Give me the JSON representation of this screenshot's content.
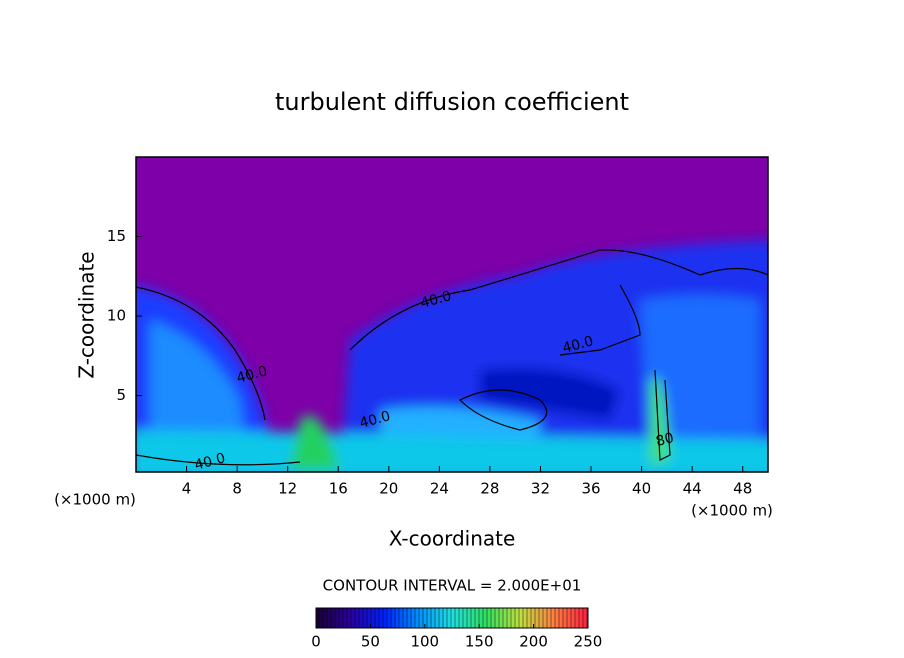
{
  "chart_data": {
    "type": "contour",
    "title": "turbulent diffusion coefficient",
    "x_label": "X-coordinate",
    "y_label": "Z-coordinate",
    "x_unit_labels": [
      "(×1000 m)",
      "(×1000 m)"
    ],
    "xlim": [
      0,
      50
    ],
    "xticks": [
      4,
      8,
      12,
      16,
      20,
      24,
      28,
      32,
      36,
      40,
      44,
      48
    ],
    "ylim": [
      0.2,
      20
    ],
    "yticks": [
      5,
      10,
      15
    ],
    "contour_labels": [
      "40.0",
      "40.0",
      "40.0",
      "40.0",
      "40.0",
      "80"
    ],
    "contour_interval": "CONTOUR INTERVAL = 2.000E+01",
    "colorbar": {
      "lim": [
        0,
        250
      ],
      "ticks": [
        0,
        50,
        100,
        150,
        200,
        250
      ],
      "colors": [
        "#1a0033",
        "#2a00a0",
        "#0020ff",
        "#0090ff",
        "#20e0e0",
        "#30e060",
        "#c0e040",
        "#ff8040",
        "#ff2040"
      ]
    }
  }
}
